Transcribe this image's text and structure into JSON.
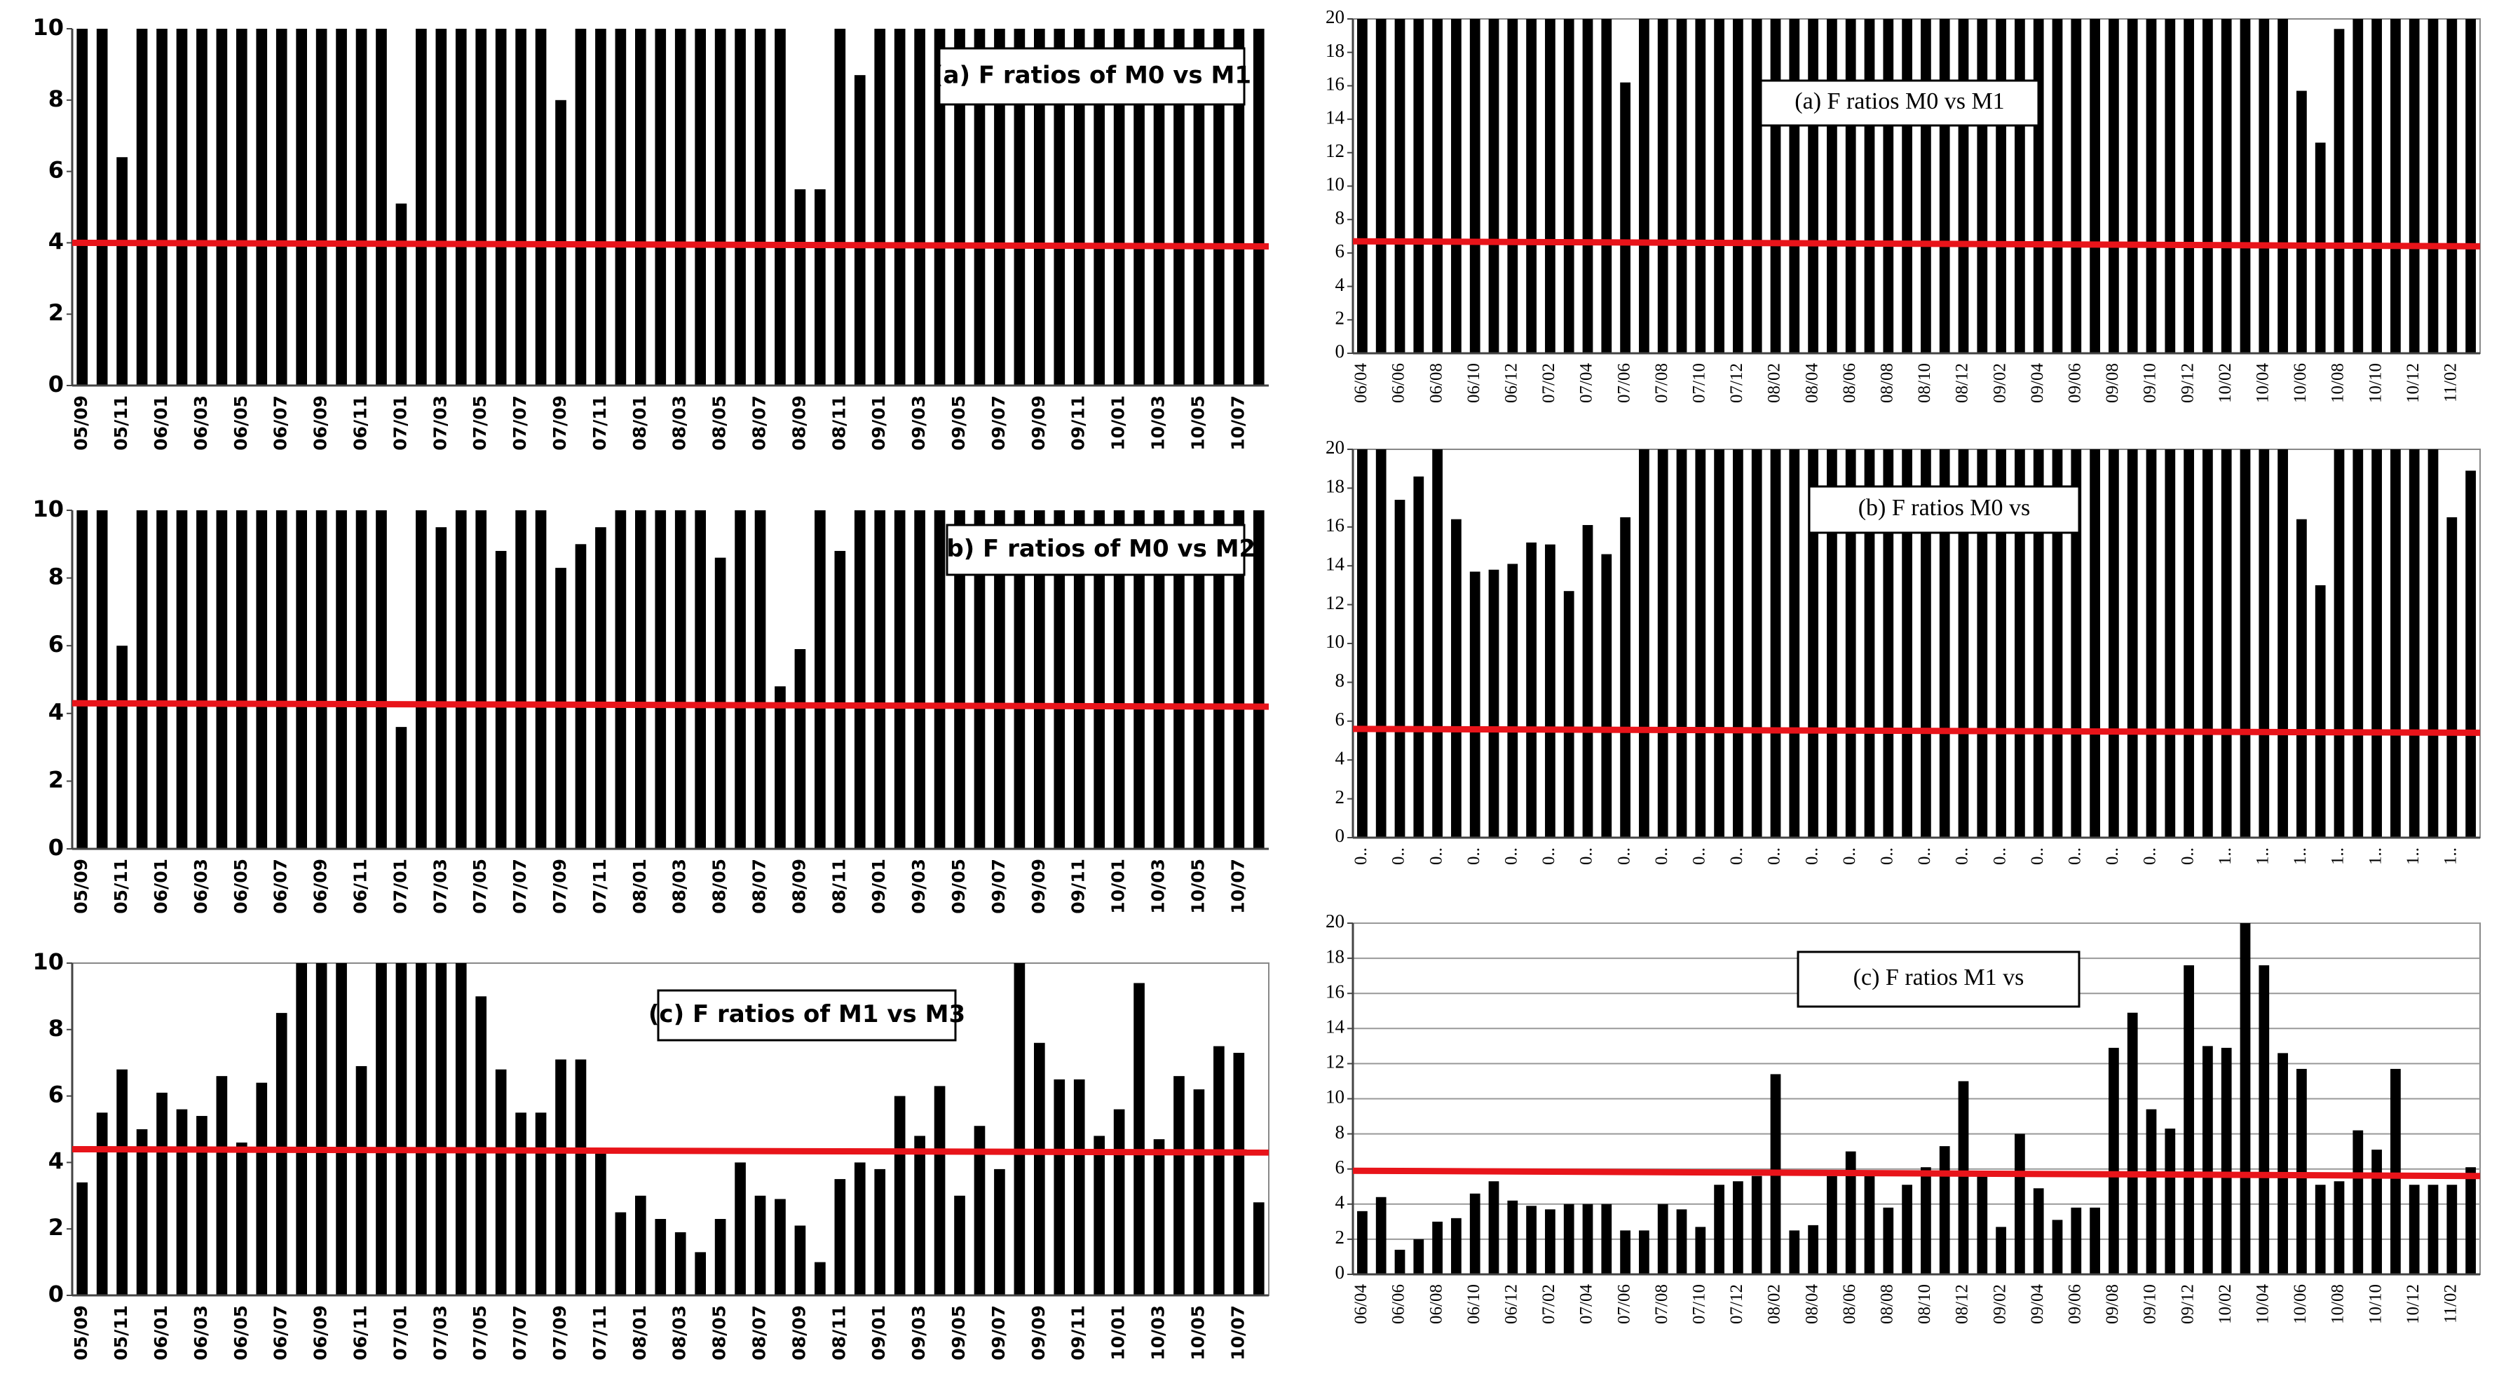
{
  "chart_data": [
    {
      "type": "bar",
      "title": "(a) F ratios of M0 vs M1",
      "color": "#000000",
      "ylim": [
        0,
        10
      ],
      "yticks": [
        0,
        2,
        4,
        6,
        8,
        10
      ],
      "grid": false,
      "categories": [
        "05/09",
        null,
        "05/11",
        null,
        "06/01",
        null,
        "06/03",
        null,
        "06/05",
        null,
        "06/07",
        null,
        "06/09",
        null,
        "06/11",
        null,
        "07/01",
        null,
        "07/03",
        null,
        "07/05",
        null,
        "07/07",
        null,
        "07/09",
        null,
        "07/11",
        null,
        "08/01",
        null,
        "08/03",
        null,
        "08/05",
        null,
        "08/07",
        null,
        "08/09",
        null,
        "08/11",
        null,
        "09/01",
        null,
        "09/03",
        null,
        "09/05",
        null,
        "09/07",
        null,
        "09/09",
        null,
        "09/11",
        null,
        "10/01",
        null,
        "10/03",
        null,
        "10/05",
        null,
        "10/07",
        null
      ],
      "values": [
        10,
        10,
        6.4,
        10,
        10,
        10,
        10,
        10,
        10,
        10,
        10,
        10,
        10,
        10,
        10,
        10,
        5.1,
        10,
        10,
        10,
        10,
        10,
        10,
        10,
        8.0,
        10,
        10,
        10,
        10,
        10,
        10,
        10,
        10,
        10,
        10,
        10,
        5.5,
        5.5,
        10,
        8.7,
        10,
        10,
        10,
        10,
        10,
        10,
        10,
        10,
        10,
        10,
        10,
        10,
        10,
        10,
        10,
        10,
        10,
        10,
        10,
        10
      ],
      "reference_line": {
        "color": "#e8141a",
        "values": [
          4.0,
          3.9
        ]
      }
    },
    {
      "type": "bar",
      "title": "(b) F ratios of M0 vs M2",
      "color": "#000000",
      "ylim": [
        0,
        10
      ],
      "yticks": [
        0,
        2,
        4,
        6,
        8,
        10
      ],
      "grid": false,
      "categories": [
        "05/09",
        null,
        "05/11",
        null,
        "06/01",
        null,
        "06/03",
        null,
        "06/05",
        null,
        "06/07",
        null,
        "06/09",
        null,
        "06/11",
        null,
        "07/01",
        null,
        "07/03",
        null,
        "07/05",
        null,
        "07/07",
        null,
        "07/09",
        null,
        "07/11",
        null,
        "08/01",
        null,
        "08/03",
        null,
        "08/05",
        null,
        "08/07",
        null,
        "08/09",
        null,
        "08/11",
        null,
        "09/01",
        null,
        "09/03",
        null,
        "09/05",
        null,
        "09/07",
        null,
        "09/09",
        null,
        "09/11",
        null,
        "10/01",
        null,
        "10/03",
        null,
        "10/05",
        null,
        "10/07",
        null
      ],
      "values": [
        10,
        10,
        6.0,
        10,
        10,
        10,
        10,
        10,
        10,
        10,
        10,
        10,
        10,
        10,
        10,
        10,
        3.6,
        10,
        9.5,
        10,
        10,
        8.8,
        10,
        10,
        8.3,
        9.0,
        9.5,
        10,
        10,
        10,
        10,
        10,
        8.6,
        10,
        10,
        4.8,
        5.9,
        10,
        8.8,
        10,
        10,
        10,
        10,
        10,
        10,
        10,
        10,
        10,
        10,
        10,
        10,
        10,
        10,
        10,
        10,
        10,
        10,
        10,
        10,
        10
      ],
      "reference_line": {
        "color": "#e8141a",
        "values": [
          4.3,
          4.2
        ]
      }
    },
    {
      "type": "bar",
      "title": "(c) F ratios of M1 vs M3",
      "color": "#000000",
      "ylim": [
        0,
        10
      ],
      "yticks": [
        0,
        2,
        4,
        6,
        8,
        10
      ],
      "grid": false,
      "categories": [
        "05/09",
        null,
        "05/11",
        null,
        "06/01",
        null,
        "06/03",
        null,
        "06/05",
        null,
        "06/07",
        null,
        "06/09",
        null,
        "06/11",
        null,
        "07/01",
        null,
        "07/03",
        null,
        "07/05",
        null,
        "07/07",
        null,
        "07/09",
        null,
        "07/11",
        null,
        "08/01",
        null,
        "08/03",
        null,
        "08/05",
        null,
        "08/07",
        null,
        "08/09",
        null,
        "08/11",
        null,
        "09/01",
        null,
        "09/03",
        null,
        "09/05",
        null,
        "09/07",
        null,
        "09/09",
        null,
        "09/11",
        null,
        "10/01",
        null,
        "10/03",
        null,
        "10/05",
        null,
        "10/07",
        null
      ],
      "values": [
        3.4,
        5.5,
        6.8,
        5.0,
        6.1,
        5.6,
        5.4,
        6.6,
        4.6,
        6.4,
        8.5,
        10,
        10,
        10,
        6.9,
        10,
        10,
        10,
        10,
        10,
        9.0,
        6.8,
        5.5,
        5.5,
        7.1,
        7.1,
        4.3,
        2.5,
        3.0,
        2.3,
        1.9,
        1.3,
        2.3,
        4.0,
        3.0,
        2.9,
        2.1,
        1.0,
        3.5,
        4.0,
        3.8,
        6.0,
        4.8,
        6.3,
        3.0,
        5.1,
        3.8,
        10,
        7.6,
        6.5,
        6.5,
        4.8,
        5.6,
        9.4,
        4.7,
        6.6,
        6.2,
        7.5,
        7.3,
        2.8
      ],
      "reference_line": {
        "color": "#e8141a",
        "values": [
          4.4,
          4.3
        ]
      }
    },
    {
      "type": "bar",
      "title": "(a) F ratios M0 vs M1",
      "color": "#000000",
      "ylim": [
        0,
        20
      ],
      "yticks": [
        0,
        2,
        4,
        6,
        8,
        10,
        12,
        14,
        16,
        18,
        20
      ],
      "grid": false,
      "categories": [
        "06/04",
        null,
        "06/06",
        null,
        "06/08",
        null,
        "06/10",
        null,
        "06/12",
        null,
        "07/02",
        null,
        "07/04",
        null,
        "07/06",
        null,
        "07/08",
        null,
        "07/10",
        null,
        "07/12",
        null,
        "08/02",
        null,
        "08/04",
        null,
        "08/06",
        null,
        "08/08",
        null,
        "08/10",
        null,
        "08/12",
        null,
        "09/02",
        null,
        "09/04",
        null,
        "09/06",
        null,
        "09/08",
        null,
        "09/10",
        null,
        "09/12",
        null,
        "10/02",
        null,
        "10/04",
        null,
        "10/06",
        null,
        "10/08",
        null,
        "10/10",
        null,
        "10/12",
        null,
        "11/02",
        null
      ],
      "values": [
        20,
        20,
        20,
        20,
        20,
        20,
        20,
        20,
        20,
        20,
        20,
        20,
        20,
        20,
        16.2,
        20,
        20,
        20,
        20,
        20,
        20,
        20,
        20,
        20,
        20,
        20,
        20,
        20,
        20,
        20,
        20,
        20,
        20,
        20,
        20,
        20,
        20,
        20,
        20,
        20,
        20,
        20,
        20,
        20,
        20,
        20,
        20,
        20,
        20,
        20,
        15.7,
        12.6,
        19.4,
        20,
        20,
        20,
        20,
        20,
        20,
        20
      ],
      "reference_line": {
        "color": "#e8141a",
        "values": [
          6.7,
          6.4
        ]
      }
    },
    {
      "type": "bar",
      "title": "(b) F ratios M0 vs",
      "color": "#000000",
      "ylim": [
        0,
        20
      ],
      "yticks": [
        0,
        2,
        4,
        6,
        8,
        10,
        12,
        14,
        16,
        18,
        20
      ],
      "grid": false,
      "categories": [
        "0..",
        null,
        "0..",
        null,
        "0..",
        null,
        "0..",
        null,
        "0..",
        null,
        "0..",
        null,
        "0..",
        null,
        "0..",
        null,
        "0..",
        null,
        "0..",
        null,
        "0..",
        null,
        "0..",
        null,
        "0..",
        null,
        "0..",
        null,
        "0..",
        null,
        "0..",
        null,
        "0..",
        null,
        "0..",
        null,
        "0..",
        null,
        "0..",
        null,
        "0..",
        null,
        "0..",
        null,
        "0..",
        null,
        "1..",
        null,
        "1..",
        null,
        "1..",
        null,
        "1..",
        null,
        "1..",
        null,
        "1..",
        null,
        "1..",
        null
      ],
      "values": [
        20,
        20,
        17.4,
        18.6,
        20,
        16.4,
        13.7,
        13.8,
        14.1,
        15.2,
        15.1,
        12.7,
        16.1,
        14.6,
        16.5,
        20,
        20,
        20,
        20,
        20,
        20,
        20,
        20,
        20,
        20,
        20,
        20,
        20,
        20,
        20,
        20,
        20,
        20,
        20,
        20,
        20,
        20,
        20,
        20,
        20,
        20,
        20,
        20,
        20,
        20,
        20,
        20,
        20,
        20,
        20,
        16.4,
        13.0,
        20,
        20,
        20,
        20,
        20,
        20,
        16.5,
        18.9
      ],
      "reference_line": {
        "color": "#e8141a",
        "values": [
          5.6,
          5.4
        ]
      }
    },
    {
      "type": "bar",
      "title": "(c) F ratios M1 vs",
      "color": "#000000",
      "ylim": [
        0,
        20
      ],
      "yticks": [
        0,
        2,
        4,
        6,
        8,
        10,
        12,
        14,
        16,
        18,
        20
      ],
      "grid": true,
      "categories": [
        "06/04",
        null,
        "06/06",
        null,
        "06/08",
        null,
        "06/10",
        null,
        "06/12",
        null,
        "07/02",
        null,
        "07/04",
        null,
        "07/06",
        null,
        "07/08",
        null,
        "07/10",
        null,
        "07/12",
        null,
        "08/02",
        null,
        "08/04",
        null,
        "08/06",
        null,
        "08/08",
        null,
        "08/10",
        null,
        "08/12",
        null,
        "09/02",
        null,
        "09/04",
        null,
        "09/06",
        null,
        "09/08",
        null,
        "09/10",
        null,
        "09/12",
        null,
        "10/02",
        null,
        "10/04",
        null,
        "10/06",
        null,
        "10/08",
        null,
        "10/10",
        null,
        "10/12",
        null,
        "11/02",
        null
      ],
      "values": [
        3.6,
        4.4,
        1.4,
        2.0,
        3.0,
        3.2,
        4.6,
        5.3,
        4.2,
        3.9,
        3.7,
        4.0,
        4.0,
        4.0,
        2.5,
        2.5,
        4.0,
        3.7,
        2.7,
        5.1,
        5.3,
        5.6,
        11.4,
        2.5,
        2.8,
        5.6,
        7.0,
        5.6,
        3.8,
        5.1,
        6.1,
        7.3,
        11.0,
        5.6,
        2.7,
        8.0,
        4.9,
        3.1,
        3.8,
        3.8,
        12.9,
        14.9,
        9.4,
        8.3,
        17.6,
        13.0,
        12.9,
        20,
        17.6,
        12.6,
        11.7,
        5.1,
        5.3,
        8.2,
        7.1,
        11.7,
        5.1,
        5.1,
        5.1,
        6.1
      ],
      "reference_line": {
        "color": "#e8141a",
        "values": [
          5.9,
          5.6
        ]
      }
    }
  ]
}
